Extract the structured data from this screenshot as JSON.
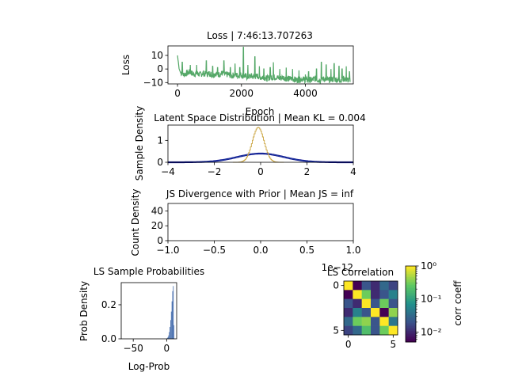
{
  "chart_data": [
    {
      "id": "loss",
      "type": "line",
      "title": "Loss | 7:46:13.707263",
      "xlabel": "Epoch",
      "ylabel": "Loss",
      "xlim": [
        -300,
        5500
      ],
      "ylim": [
        -11,
        17
      ],
      "xticks": [
        0,
        2000,
        4000
      ],
      "yticks": [
        -10,
        0,
        10
      ],
      "xtick_labels": [
        "0",
        "2000",
        "4000"
      ],
      "ytick_labels": [
        "−10",
        "0",
        "10"
      ],
      "color": "#55a868",
      "series": [
        {
          "x": [
            0,
            20,
            50,
            100,
            150,
            200,
            300,
            400,
            500,
            600,
            700,
            800,
            900,
            1000,
            1100,
            1200,
            1300,
            1400,
            1500,
            1600,
            1700,
            1800,
            1900,
            2000,
            2050,
            2100,
            2200,
            2300,
            2400,
            2500,
            2600,
            2700,
            2800,
            2900,
            3000,
            3100,
            3200,
            3300,
            3400,
            3500,
            3600,
            3700,
            3800,
            3900,
            4000,
            4100,
            4200,
            4300,
            4400,
            4500,
            4600,
            4700,
            4800,
            4900,
            5000,
            5100,
            5200,
            5300,
            5400
          ],
          "y": [
            10,
            6,
            0,
            -3,
            -5,
            -5,
            -4,
            -3,
            -5,
            -4,
            -5,
            -4,
            -5,
            -4,
            -6,
            -4,
            -5,
            -4,
            -5,
            -5,
            -6,
            -5,
            -6,
            -5,
            -6,
            -6,
            -7,
            -6,
            -7,
            -6,
            -7,
            -7,
            -8,
            -7,
            -7,
            -7,
            -8,
            -7,
            -8,
            -8,
            -8,
            -9,
            -9,
            -8,
            -9,
            -9,
            -9,
            -8,
            -9,
            -9,
            -8,
            -9,
            -9,
            -8,
            -9,
            -9,
            -8,
            -9,
            -9
          ],
          "peaks": [
            {
              "x": 150,
              "y": 5
            },
            {
              "x": 400,
              "y": 3
            },
            {
              "x": 600,
              "y": 3
            },
            {
              "x": 900,
              "y": 6
            },
            {
              "x": 1100,
              "y": 2
            },
            {
              "x": 1250,
              "y": 1
            },
            {
              "x": 1450,
              "y": 6
            },
            {
              "x": 1650,
              "y": 1
            },
            {
              "x": 1800,
              "y": 4
            },
            {
              "x": 1950,
              "y": 1
            },
            {
              "x": 2060,
              "y": 16
            },
            {
              "x": 2200,
              "y": 3
            },
            {
              "x": 2420,
              "y": 9
            },
            {
              "x": 2560,
              "y": 2
            },
            {
              "x": 2700,
              "y": 0
            },
            {
              "x": 2900,
              "y": 1
            },
            {
              "x": 3000,
              "y": 5
            },
            {
              "x": 3200,
              "y": 0
            },
            {
              "x": 3400,
              "y": 1
            },
            {
              "x": 3600,
              "y": 0
            },
            {
              "x": 3800,
              "y": -1
            },
            {
              "x": 4000,
              "y": -4
            },
            {
              "x": 4100,
              "y": -2
            },
            {
              "x": 4350,
              "y": 0
            },
            {
              "x": 4500,
              "y": 5
            },
            {
              "x": 4650,
              "y": 3
            },
            {
              "x": 4800,
              "y": 0
            },
            {
              "x": 4900,
              "y": 4
            },
            {
              "x": 5050,
              "y": 2
            },
            {
              "x": 5150,
              "y": 0
            },
            {
              "x": 5280,
              "y": 2
            },
            {
              "x": 5380,
              "y": -2
            }
          ]
        }
      ]
    },
    {
      "id": "latent",
      "type": "line",
      "title": "Latent Space Distribution | Mean KL = 0.004",
      "xlabel": "",
      "ylabel": "Sample Density",
      "xlim": [
        -4,
        4
      ],
      "ylim": [
        0,
        1.7
      ],
      "xticks": [
        -4,
        -2,
        0,
        2,
        4
      ],
      "yticks": [
        0,
        1
      ],
      "xtick_labels": [
        "−4",
        "−2",
        "0",
        "2",
        "4"
      ],
      "ytick_labels": [
        "0",
        "1"
      ],
      "series": [
        {
          "kind": "gaussian",
          "mean": 0,
          "std": 1,
          "color": "#0b0b8f"
        },
        {
          "kind": "gaussian",
          "mean": 0,
          "std": 1,
          "color": "#1f3f9f"
        },
        {
          "kind": "gaussian-hist",
          "mean": -0.1,
          "std": 0.25,
          "color": "#c9a23a"
        }
      ]
    },
    {
      "id": "js",
      "type": "line",
      "title": "JS Divergence with Prior | Mean JS = inf",
      "xlabel": "",
      "ylabel": "Count Density",
      "xlim": [
        -1,
        1
      ],
      "ylim": [
        0,
        50
      ],
      "xticks": [
        -1,
        -0.5,
        0,
        0.5,
        1
      ],
      "yticks": [
        0,
        20,
        40
      ],
      "xtick_labels": [
        "−1.0",
        "−0.5",
        "0.0",
        "0.5",
        "1.0"
      ],
      "ytick_labels": [
        "0",
        "20",
        "40"
      ],
      "offset_label": "1e−12",
      "series": []
    },
    {
      "id": "ls-prob",
      "type": "bar",
      "title": "LS Sample Probabilities",
      "xlabel": "Log-Prob",
      "ylabel": "Prob Density",
      "xlim": [
        -68,
        15
      ],
      "ylim": [
        0,
        0.33
      ],
      "xticks": [
        -50,
        0
      ],
      "yticks": [
        0,
        0.2
      ],
      "xtick_labels": [
        "−50",
        "0"
      ],
      "ytick_labels": [
        "0.0",
        "0.2"
      ],
      "color": "#4c72b0",
      "x": [
        1,
        2,
        3,
        4,
        5,
        6,
        7,
        8,
        9,
        10,
        11
      ],
      "values": [
        0.005,
        0.01,
        0.02,
        0.04,
        0.07,
        0.11,
        0.16,
        0.22,
        0.28,
        0.31,
        0.08
      ]
    },
    {
      "id": "ls-corr",
      "type": "heatmap",
      "title": "LS Correlation",
      "xlabel": "",
      "ylabel": "",
      "xticks": [
        0,
        5
      ],
      "yticks": [
        0,
        5
      ],
      "xtick_labels": [
        "0",
        "5"
      ],
      "ytick_labels": [
        "0",
        "5"
      ],
      "colorbar_label": "corr coeff",
      "colorbar_tick_labels": [
        "10⁰",
        "10⁻¹",
        "10⁻²"
      ],
      "colorbar_range": [
        0.005,
        1
      ],
      "matrix": [
        [
          1.0,
          0.005,
          0.02,
          0.01,
          0.03,
          0.015
        ],
        [
          0.005,
          1.0,
          0.3,
          0.01,
          0.02,
          0.05
        ],
        [
          0.02,
          0.01,
          1.0,
          0.02,
          0.3,
          0.02
        ],
        [
          0.01,
          0.05,
          0.02,
          1.0,
          0.005,
          0.4
        ],
        [
          0.03,
          0.3,
          0.4,
          0.02,
          1.0,
          0.04
        ],
        [
          0.015,
          0.03,
          0.2,
          0.02,
          0.3,
          1.0
        ]
      ]
    }
  ]
}
